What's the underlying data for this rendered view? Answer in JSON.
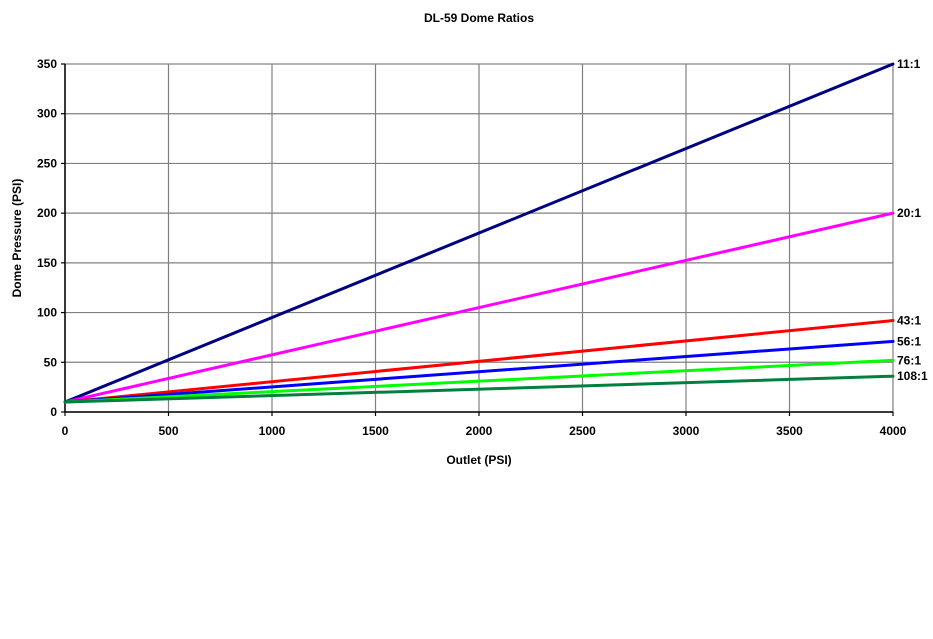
{
  "chart_data": {
    "type": "line",
    "title": "DL-59 Dome Ratios",
    "xlabel": "Outlet (PSI)",
    "ylabel": "Dome Pressure (PSI)",
    "xlim": [
      0,
      4000
    ],
    "ylim": [
      0,
      350
    ],
    "x_ticks": [
      0,
      500,
      1000,
      1500,
      2000,
      2500,
      3000,
      3500,
      4000
    ],
    "y_ticks": [
      0,
      50,
      100,
      150,
      200,
      250,
      300,
      350
    ],
    "grid": true,
    "legend": "none; series labels at right end of lines",
    "series": [
      {
        "name": "11:1",
        "color": "#000080",
        "x": [
          0,
          4000
        ],
        "y": [
          10,
          350
        ]
      },
      {
        "name": "20:1",
        "color": "#ff00ff",
        "x": [
          0,
          4000
        ],
        "y": [
          10,
          200
        ]
      },
      {
        "name": "43:1",
        "color": "#ff0000",
        "x": [
          0,
          4000
        ],
        "y": [
          10,
          92
        ]
      },
      {
        "name": "56:1",
        "color": "#0000ff",
        "x": [
          0,
          4000
        ],
        "y": [
          10,
          71
        ]
      },
      {
        "name": "76:1",
        "color": "#00ff00",
        "x": [
          0,
          4000
        ],
        "y": [
          10,
          52
        ]
      },
      {
        "name": "108:1",
        "color": "#008040",
        "x": [
          0,
          4000
        ],
        "y": [
          10,
          36
        ]
      }
    ]
  }
}
